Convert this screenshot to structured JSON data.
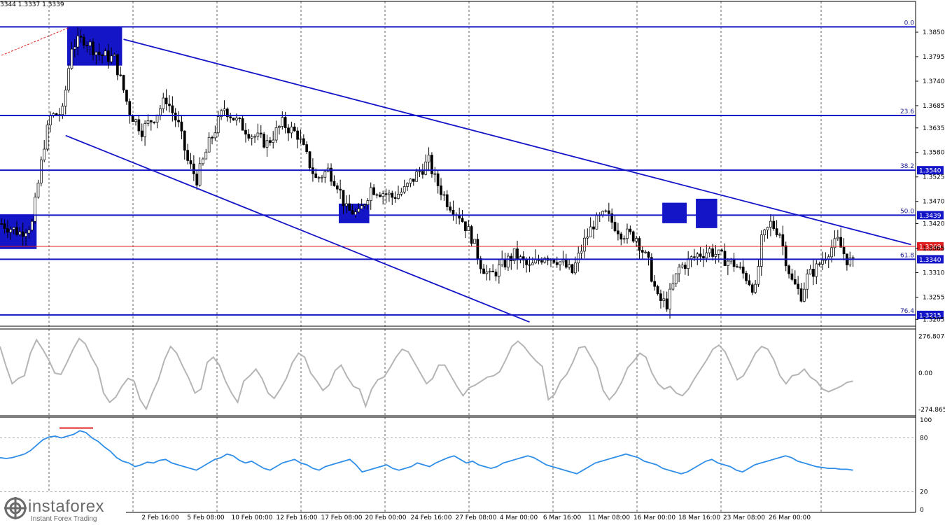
{
  "header": {
    "quote": "3344 1.3337 1.3339"
  },
  "logo": {
    "name": "instaforex",
    "tagline": "Instant Forex Trading"
  },
  "colors": {
    "channel": "#1515c8",
    "level": "#1515c8",
    "current": "#e02020",
    "osc": "#b5b5b5",
    "rsi": "#2f8ee8",
    "rsi_mark": "#e02020",
    "candle": "#000000",
    "grid": "#000000"
  },
  "x_axis": {
    "labels": [
      "2 Feb 16:00",
      "5 Feb 08:00",
      "10 Feb 00:00",
      "12 Feb 16:00",
      "17 Feb 08:00",
      "20 Feb 00:00",
      "24 Feb 16:00",
      "27 Feb 08:00",
      "4 Mar 00:00",
      "6 Mar 16:00",
      "11 Mar 08:00",
      "16 Mar 00:00",
      "18 Mar 16:00",
      "23 Mar 08:00",
      "26 Mar 00:00"
    ]
  },
  "chart_data": [
    {
      "type": "candlestick",
      "panel": "price",
      "y_ticks": [
        "1.3850",
        "1.3795",
        "1.3740",
        "1.3685",
        "1.3635",
        "1.3580",
        "1.3525",
        "1.3470",
        "1.3420",
        "1.3365",
        "1.3310",
        "1.3255",
        "1.3205"
      ],
      "ylim": [
        1.3196,
        1.3894
      ],
      "fib_levels": [
        {
          "label": "0.0",
          "price": 1.3862
        },
        {
          "label": "23.6",
          "price": 1.3663
        },
        {
          "label": "38.2",
          "price": 1.354,
          "tag": "1.3540"
        },
        {
          "label": "50.0",
          "price": 1.3439,
          "tag": "1.3439"
        },
        {
          "label": "61.8",
          "price": 1.334,
          "tag": "1.3340"
        },
        {
          "label": "76.4",
          "price": 1.3215,
          "tag": "1.3215"
        }
      ],
      "current_price": {
        "price": 1.3369,
        "tag": "1.3369"
      },
      "channel": {
        "upper": [
          {
            "bar": 40,
            "price": 1.3834
          },
          {
            "bar": 298,
            "price": 1.3373
          }
        ],
        "lower": [
          {
            "bar": 21,
            "price": 1.3618
          },
          {
            "bar": 173,
            "price": 1.3199
          }
        ]
      },
      "fib_anchor_line": {
        "from": {
          "bar": 0,
          "price": 1.3798
        },
        "to": {
          "bar": 22,
          "price": 1.386
        }
      },
      "boxes": [
        {
          "from_bar": 0,
          "to_bar": 11,
          "top": 1.3441,
          "bottom": 1.3363
        },
        {
          "from_bar": 22,
          "to_bar": 39,
          "top": 1.3862,
          "bottom": 1.3775
        },
        {
          "from_bar": 111,
          "to_bar": 120,
          "top": 1.3465,
          "bottom": 1.3421
        },
        {
          "from_bar": 217,
          "to_bar": 224,
          "top": 1.3467,
          "bottom": 1.3421
        },
        {
          "from_bar": 228,
          "to_bar": 234,
          "top": 1.3476,
          "bottom": 1.341
        }
      ],
      "anchors": [
        [
          0,
          1.342
        ],
        [
          6,
          1.34
        ],
        [
          10,
          1.342
        ],
        [
          14,
          1.36
        ],
        [
          16,
          1.366
        ],
        [
          20,
          1.367
        ],
        [
          23,
          1.382
        ],
        [
          27,
          1.3835
        ],
        [
          32,
          1.38
        ],
        [
          37,
          1.379
        ],
        [
          40,
          1.372
        ],
        [
          42,
          1.367
        ],
        [
          46,
          1.363
        ],
        [
          50,
          1.366
        ],
        [
          54,
          1.37
        ],
        [
          58,
          1.364
        ],
        [
          61,
          1.356
        ],
        [
          64,
          1.352
        ],
        [
          68,
          1.36
        ],
        [
          73,
          1.368
        ],
        [
          77,
          1.365
        ],
        [
          82,
          1.362
        ],
        [
          87,
          1.36
        ],
        [
          92,
          1.3645
        ],
        [
          97,
          1.362
        ],
        [
          100,
          1.357
        ],
        [
          103,
          1.352
        ],
        [
          107,
          1.354
        ],
        [
          110,
          1.351
        ],
        [
          113,
          1.345
        ],
        [
          117,
          1.344
        ],
        [
          121,
          1.35
        ],
        [
          125,
          1.349
        ],
        [
          128,
          1.348
        ],
        [
          132,
          1.3495
        ],
        [
          136,
          1.353
        ],
        [
          140,
          1.356
        ],
        [
          142,
          1.352
        ],
        [
          146,
          1.347
        ],
        [
          150,
          1.344
        ],
        [
          154,
          1.339
        ],
        [
          157,
          1.333
        ],
        [
          160,
          1.33
        ],
        [
          163,
          1.332
        ],
        [
          168,
          1.335
        ],
        [
          173,
          1.332
        ],
        [
          178,
          1.335
        ],
        [
          182,
          1.334
        ],
        [
          187,
          1.331
        ],
        [
          191,
          1.338
        ],
        [
          194,
          1.342
        ],
        [
          198,
          1.344
        ],
        [
          203,
          1.34
        ],
        [
          208,
          1.339
        ],
        [
          212,
          1.333
        ],
        [
          215,
          1.325
        ],
        [
          218,
          1.324
        ],
        [
          222,
          1.332
        ],
        [
          228,
          1.335
        ],
        [
          232,
          1.336
        ],
        [
          237,
          1.334
        ],
        [
          240,
          1.333
        ],
        [
          244,
          1.33
        ],
        [
          247,
          1.327
        ],
        [
          249,
          1.338
        ],
        [
          252,
          1.342
        ],
        [
          255,
          1.34
        ],
        [
          257,
          1.334
        ],
        [
          259,
          1.329
        ],
        [
          262,
          1.326
        ],
        [
          264,
          1.33
        ],
        [
          267,
          1.332
        ],
        [
          271,
          1.336
        ],
        [
          274,
          1.338
        ],
        [
          277,
          1.334
        ],
        [
          279,
          1.333
        ]
      ]
    },
    {
      "type": "line",
      "panel": "oscillator",
      "y_ticks": [
        "276.8074",
        "0.00",
        "-274.8659"
      ],
      "ylim": [
        -300,
        300
      ],
      "series": [
        {
          "values": [
            200,
            50,
            -80,
            -40,
            -20,
            150,
            250,
            180,
            100,
            0,
            -10,
            80,
            180,
            260,
            220,
            120,
            40,
            -150,
            -220,
            -180,
            -100,
            -40,
            -60,
            -200,
            -270,
            -150,
            -50,
            100,
            200,
            150,
            50,
            -40,
            -150,
            -120,
            80,
            120,
            60,
            -60,
            -150,
            -220,
            -60,
            -20,
            30,
            -40,
            -150,
            -190,
            -120,
            -40,
            80,
            150,
            120,
            0,
            -60,
            -130,
            -90,
            20,
            60,
            -30,
            -100,
            -120,
            -250,
            -120,
            -50,
            -30,
            40,
            120,
            180,
            160,
            80,
            0,
            -80,
            -40,
            60,
            60,
            -20,
            -100,
            -170,
            -110,
            -90,
            -60,
            -30,
            -20,
            10,
            100,
            200,
            240,
            200,
            140,
            90,
            50,
            -200,
            -160,
            -60,
            -10,
            80,
            190,
            200,
            120,
            40,
            -130,
            -200,
            -150,
            -70,
            40,
            90,
            150,
            120,
            0,
            -80,
            -120,
            -100,
            -150,
            -170,
            -120,
            -40,
            30,
            100,
            180,
            210,
            160,
            60,
            -50,
            -20,
            60,
            150,
            200,
            180,
            100,
            -20,
            -80,
            -20,
            -10,
            30,
            -30,
            -60,
            -120,
            -140,
            -120,
            -100,
            -70,
            -60
          ]
        }
      ]
    },
    {
      "type": "line",
      "panel": "rsi",
      "y_ticks": [
        "100",
        "80",
        "20",
        "0"
      ],
      "ylim": [
        0,
        100
      ],
      "levels": [
        80,
        20
      ],
      "series": [
        {
          "values": [
            58,
            57,
            58,
            60,
            62,
            66,
            72,
            78,
            81,
            82,
            80,
            82,
            84,
            88,
            86,
            80,
            76,
            70,
            65,
            58,
            54,
            52,
            48,
            50,
            53,
            52,
            55,
            56,
            52,
            50,
            48,
            46,
            44,
            48,
            52,
            56,
            58,
            62,
            60,
            55,
            52,
            54,
            50,
            46,
            44,
            48,
            52,
            54,
            56,
            52,
            50,
            46,
            44,
            48,
            50,
            52,
            54,
            56,
            50,
            42,
            44,
            46,
            48,
            50,
            46,
            44,
            46,
            48,
            52,
            50,
            48,
            52,
            55,
            58,
            60,
            56,
            52,
            54,
            50,
            48,
            46,
            48,
            52,
            54,
            56,
            58,
            60,
            58,
            54,
            50,
            48,
            46,
            44,
            42,
            40,
            44,
            48,
            52,
            54,
            56,
            58,
            60,
            62,
            60,
            58,
            54,
            52,
            50,
            46,
            44,
            42,
            40,
            42,
            46,
            50,
            54,
            56,
            52,
            50,
            48,
            44,
            42,
            46,
            50,
            52,
            54,
            56,
            58,
            60,
            58,
            54,
            52,
            50,
            48,
            47,
            46,
            46,
            45,
            45,
            44
          ]
        }
      ]
    }
  ]
}
